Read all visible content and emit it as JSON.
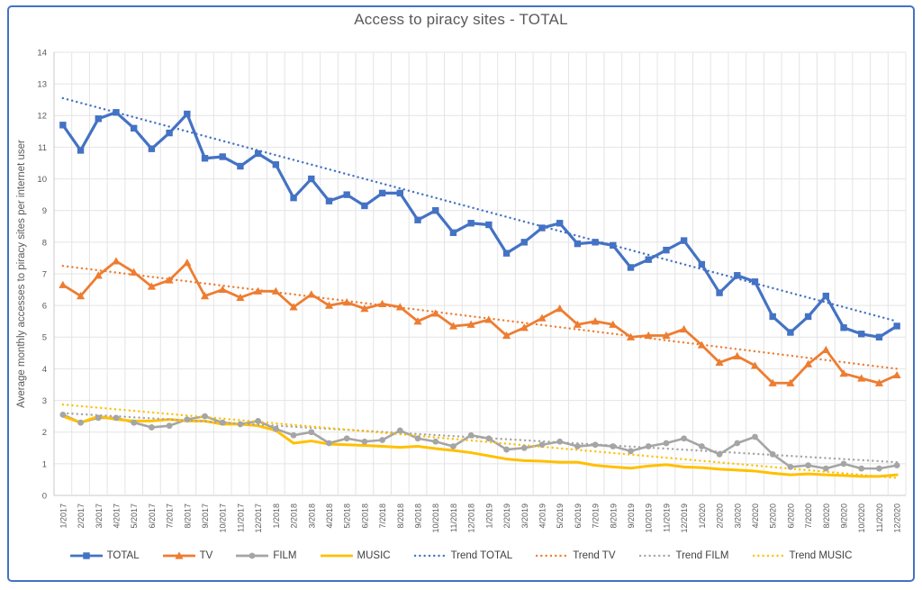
{
  "window": {
    "border_color": "#4472C4",
    "background": "#FFFFFF"
  },
  "chart_data": {
    "type": "line",
    "title": "Access to piracy sites - TOTAL",
    "xlabel": "",
    "ylabel": "Average monthly accesses to piracy sites per internet user",
    "ylim": [
      0,
      14
    ],
    "y_tick_step": 1,
    "grid": true,
    "legend_position": "bottom",
    "axis_text_color": "#595959",
    "gridline_color": "#E4E4E4",
    "axisline_color": "#C9C9C9",
    "categories": [
      "1/2017",
      "2/2017",
      "3/2017",
      "4/2017",
      "5/2017",
      "6/2017",
      "7/2017",
      "8/2017",
      "9/2017",
      "10/2017",
      "11/2017",
      "12/2017",
      "1/2018",
      "2/2018",
      "3/2018",
      "4/2018",
      "5/2018",
      "6/2018",
      "7/2018",
      "8/2018",
      "9/2018",
      "10/2018",
      "11/2018",
      "12/2018",
      "1/2019",
      "2/2019",
      "3/2019",
      "4/2019",
      "5/2019",
      "6/2019",
      "7/2019",
      "8/2019",
      "9/2019",
      "10/2019",
      "11/2019",
      "12/2019",
      "1/2020",
      "2/2020",
      "3/2020",
      "4/2020",
      "5/2020",
      "6/2020",
      "7/2020",
      "8/2020",
      "9/2020",
      "10/2020",
      "11/2020",
      "12/2020"
    ],
    "series": [
      {
        "name": "TOTAL",
        "color": "#4472C4",
        "marker": "square",
        "values": [
          11.7,
          10.9,
          11.9,
          12.1,
          11.6,
          10.95,
          11.45,
          12.05,
          10.65,
          10.7,
          10.4,
          10.8,
          10.45,
          9.4,
          10.0,
          9.3,
          9.5,
          9.15,
          9.55,
          9.55,
          8.7,
          9.0,
          8.3,
          8.6,
          8.55,
          7.65,
          8.0,
          8.45,
          8.6,
          7.95,
          8.0,
          7.9,
          7.2,
          7.45,
          7.75,
          8.05,
          7.3,
          6.4,
          6.95,
          6.75,
          5.65,
          5.15,
          5.65,
          6.3,
          5.3,
          5.1,
          5.0,
          5.35
        ]
      },
      {
        "name": "TV",
        "color": "#ED7D31",
        "marker": "triangle",
        "values": [
          6.65,
          6.3,
          6.95,
          7.4,
          7.05,
          6.6,
          6.8,
          7.35,
          6.3,
          6.5,
          6.25,
          6.45,
          6.45,
          5.95,
          6.35,
          6.0,
          6.1,
          5.9,
          6.05,
          5.95,
          5.5,
          5.75,
          5.35,
          5.4,
          5.55,
          5.05,
          5.3,
          5.6,
          5.9,
          5.4,
          5.5,
          5.4,
          5.0,
          5.05,
          5.05,
          5.25,
          4.75,
          4.2,
          4.4,
          4.1,
          3.55,
          3.55,
          4.15,
          4.6,
          3.85,
          3.7,
          3.55,
          3.8
        ]
      },
      {
        "name": "FILM",
        "color": "#A5A5A5",
        "marker": "circle",
        "values": [
          2.55,
          2.3,
          2.45,
          2.45,
          2.3,
          2.15,
          2.2,
          2.4,
          2.5,
          2.3,
          2.25,
          2.35,
          2.1,
          1.9,
          2.0,
          1.65,
          1.8,
          1.7,
          1.75,
          2.05,
          1.8,
          1.7,
          1.55,
          1.9,
          1.8,
          1.45,
          1.5,
          1.6,
          1.7,
          1.55,
          1.6,
          1.55,
          1.4,
          1.55,
          1.65,
          1.8,
          1.55,
          1.3,
          1.65,
          1.85,
          1.3,
          0.9,
          0.95,
          0.85,
          1.0,
          0.85,
          0.85,
          0.95
        ]
      },
      {
        "name": "MUSIC",
        "color": "#FFC000",
        "marker": "none",
        "values": [
          2.5,
          2.3,
          2.5,
          2.4,
          2.35,
          2.35,
          2.4,
          2.35,
          2.35,
          2.25,
          2.25,
          2.2,
          2.05,
          1.65,
          1.72,
          1.62,
          1.6,
          1.58,
          1.55,
          1.52,
          1.55,
          1.48,
          1.42,
          1.35,
          1.25,
          1.15,
          1.1,
          1.08,
          1.05,
          1.05,
          0.95,
          0.9,
          0.86,
          0.93,
          0.97,
          0.9,
          0.88,
          0.83,
          0.8,
          0.77,
          0.7,
          0.65,
          0.68,
          0.65,
          0.63,
          0.6,
          0.6,
          0.65
        ]
      }
    ],
    "trendlines": [
      {
        "name": "Trend TOTAL",
        "color": "#4472C4",
        "style": "dotted",
        "start": 12.55,
        "end": 5.5
      },
      {
        "name": "Trend TV",
        "color": "#ED7D31",
        "style": "dotted",
        "start": 7.25,
        "end": 4.0
      },
      {
        "name": "Trend FILM",
        "color": "#A5A5A5",
        "style": "dotted",
        "start": 2.6,
        "end": 1.05
      },
      {
        "name": "Trend MUSIC",
        "color": "#FFC000",
        "style": "dotted",
        "start": 2.87,
        "end": 0.55
      }
    ]
  }
}
